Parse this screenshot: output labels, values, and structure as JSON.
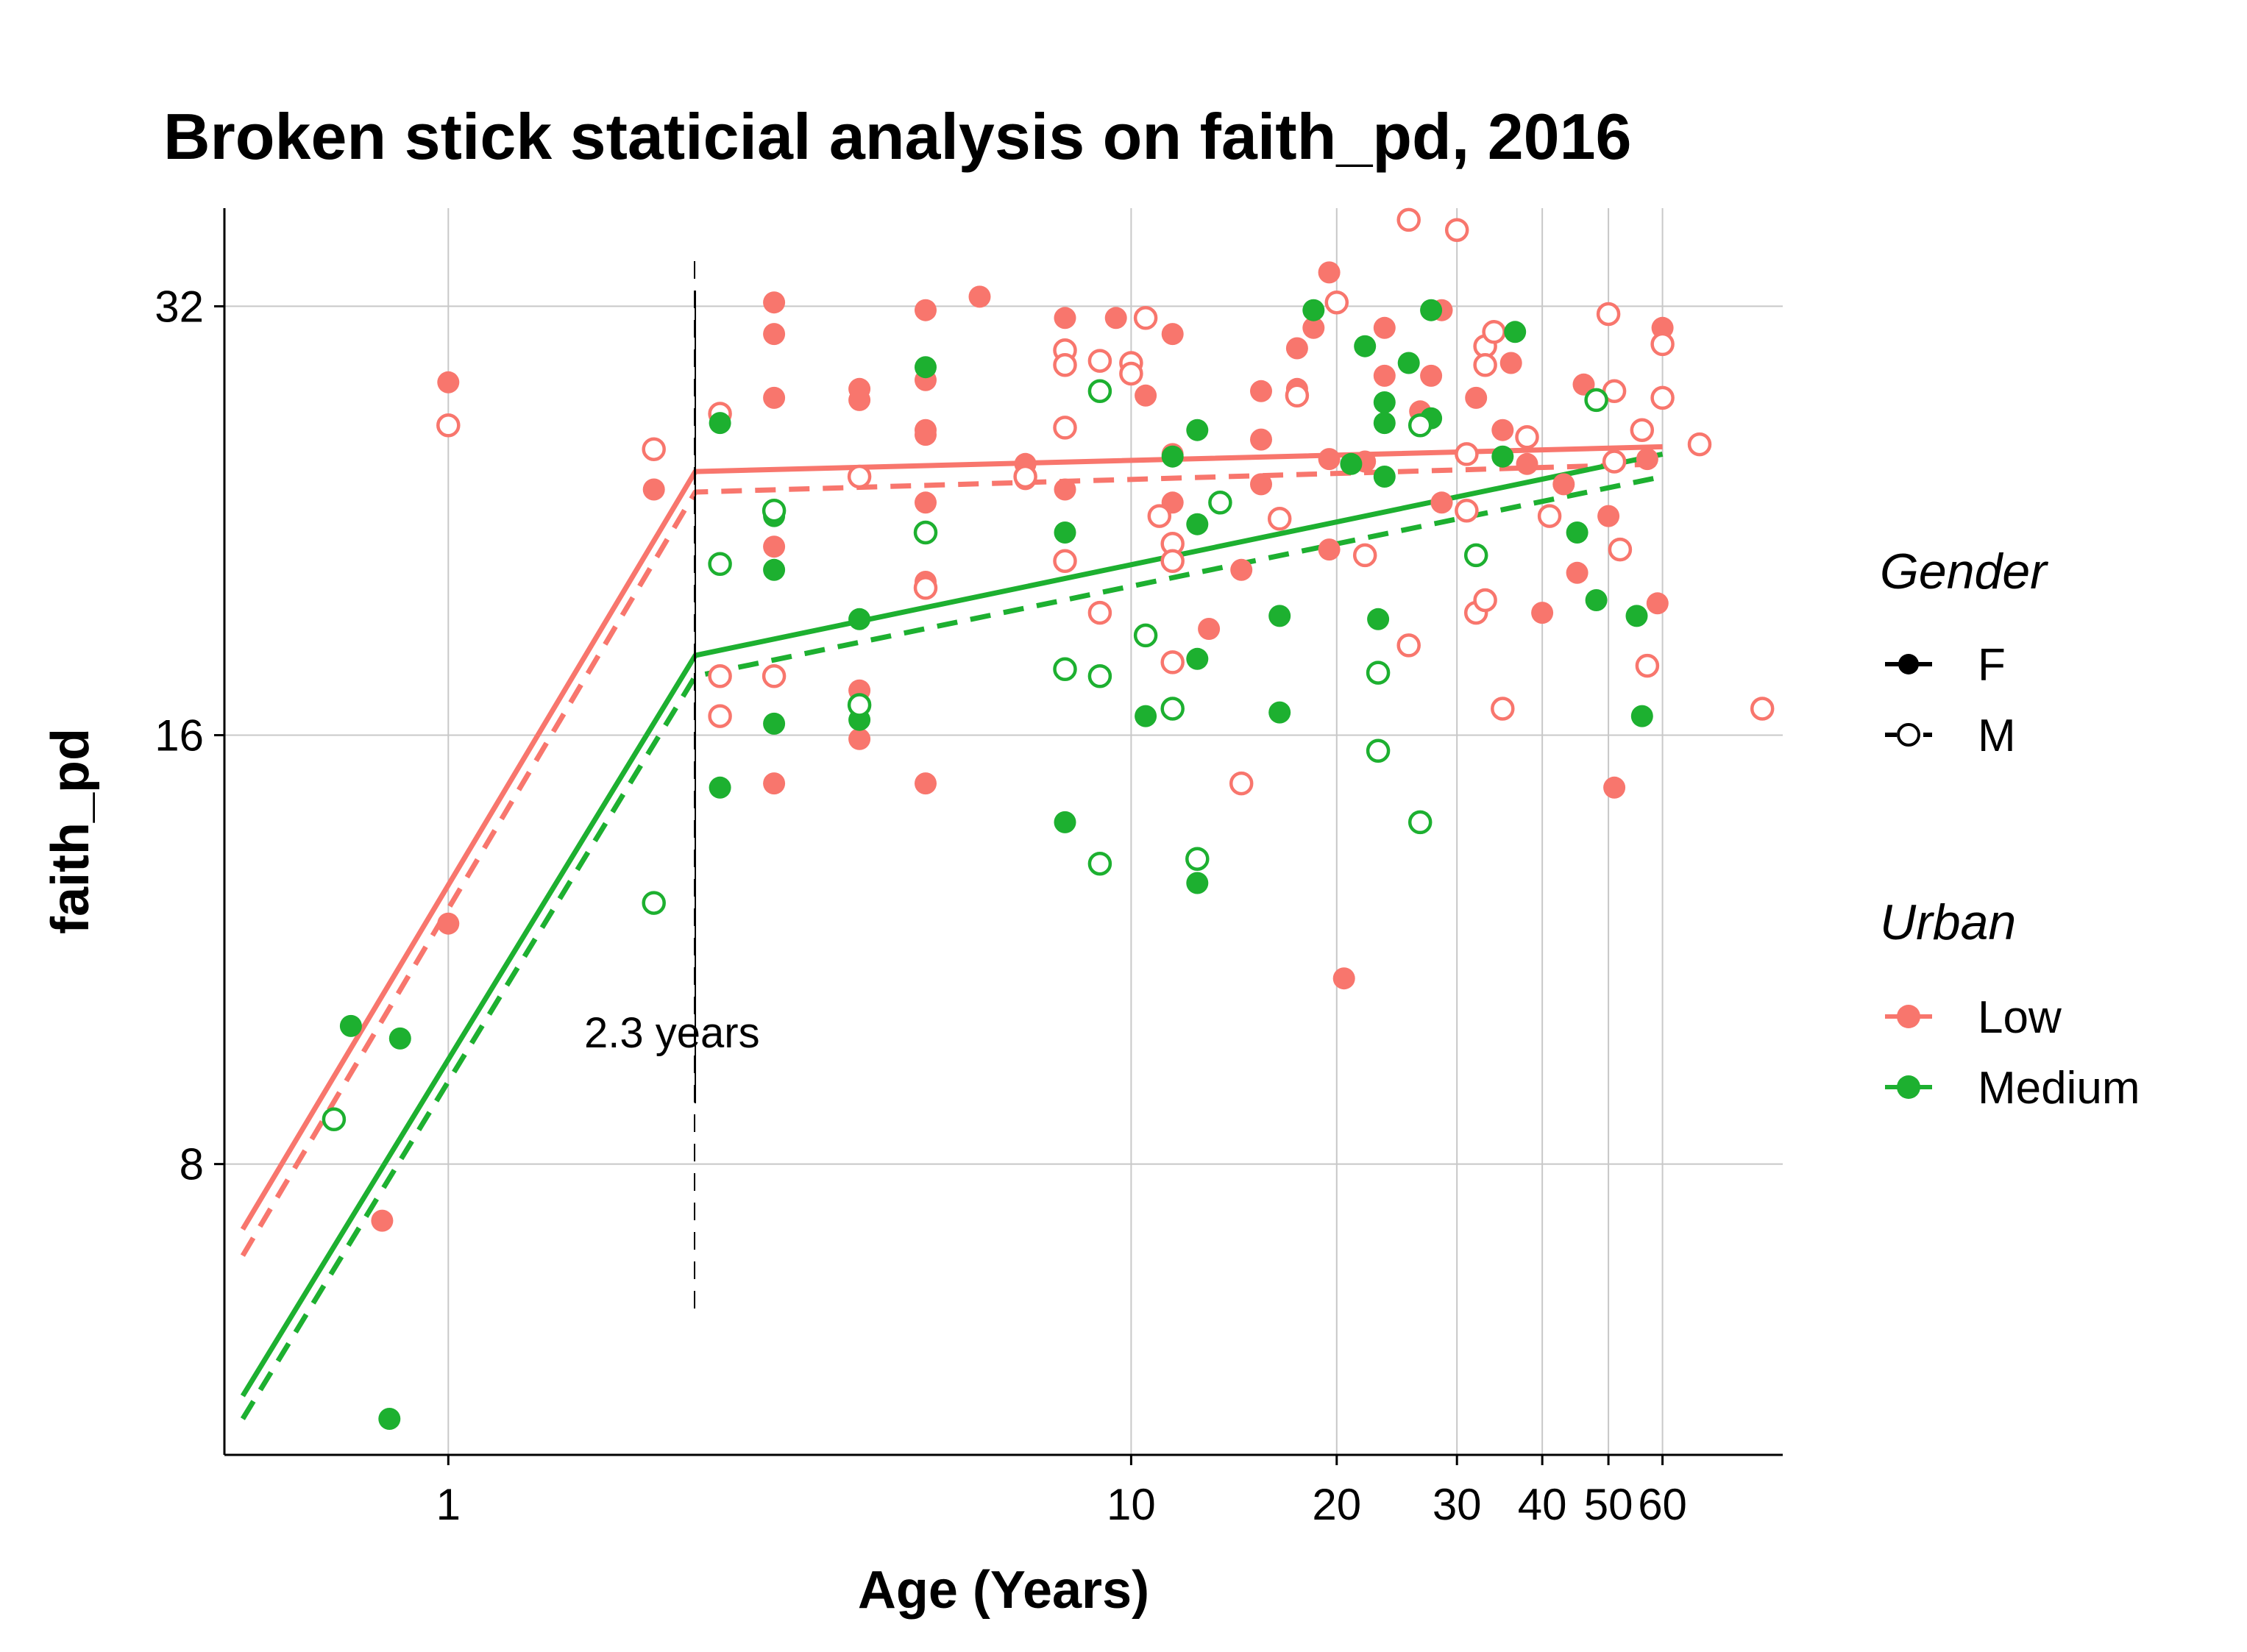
{
  "chart_data": {
    "type": "scatter",
    "title": "Broken stick staticial analysis on faith_pd, 2016",
    "xlabel": "Age (Years)",
    "ylabel": "faith_pd",
    "x_scale": "log",
    "xlim": [
      0.47,
      90
    ],
    "ylim": [
      5.0,
      37.5
    ],
    "y_scale": "log",
    "x_ticks": [
      1,
      10,
      20,
      30,
      40,
      50,
      60
    ],
    "y_ticks": [
      8,
      16,
      32
    ],
    "grid": true,
    "breakpoint": 2.3,
    "annotation": "2.3 years",
    "legend_position": "right",
    "legend": {
      "gender_title": "Gender",
      "gender_items": [
        {
          "label": "F",
          "marker": "filled",
          "line": "solid"
        },
        {
          "label": "M",
          "marker": "open",
          "line": "dashed"
        }
      ],
      "urban_title": "Urban",
      "urban_items": [
        {
          "label": "Low",
          "color": "#F8766D"
        },
        {
          "label": "Medium",
          "color": "#1DB030"
        }
      ]
    },
    "colors": {
      "Low": "#F8766D",
      "Medium": "#1DB030"
    },
    "fits": [
      {
        "urban": "Low",
        "gender": "F",
        "line": "solid",
        "points": [
          [
            0.5,
            7.2
          ],
          [
            2.3,
            24.5
          ],
          [
            60,
            25.5
          ]
        ]
      },
      {
        "urban": "Low",
        "gender": "M",
        "line": "dashed",
        "points": [
          [
            0.5,
            6.9
          ],
          [
            2.3,
            23.7
          ],
          [
            60,
            24.8
          ]
        ]
      },
      {
        "urban": "Medium",
        "gender": "F",
        "line": "solid",
        "points": [
          [
            0.5,
            5.5
          ],
          [
            2.3,
            18.2
          ],
          [
            60,
            25.2
          ]
        ]
      },
      {
        "urban": "Medium",
        "gender": "M",
        "line": "dashed",
        "points": [
          [
            0.5,
            5.3
          ],
          [
            2.3,
            17.6
          ],
          [
            60,
            24.3
          ]
        ]
      }
    ],
    "series": [
      {
        "urban": "Low",
        "gender": "F",
        "points": [
          [
            1.0,
            28.3
          ],
          [
            1.0,
            11.8
          ],
          [
            0.8,
            7.3
          ],
          [
            2.0,
            23.8
          ],
          [
            3.0,
            32.2
          ],
          [
            3.0,
            30.6
          ],
          [
            3.0,
            27.6
          ],
          [
            3.0,
            23.0
          ],
          [
            3.0,
            21.7
          ],
          [
            3.0,
            14.8
          ],
          [
            4.0,
            28.0
          ],
          [
            4.0,
            27.5
          ],
          [
            4.0,
            17.2
          ],
          [
            4.0,
            15.9
          ],
          [
            5.0,
            31.8
          ],
          [
            5.0,
            28.4
          ],
          [
            5.0,
            26.2
          ],
          [
            5.0,
            26.0
          ],
          [
            5.0,
            23.3
          ],
          [
            5.0,
            20.5
          ],
          [
            5.0,
            14.8
          ],
          [
            6.0,
            32.5
          ],
          [
            7.0,
            24.8
          ],
          [
            7.0,
            24.2
          ],
          [
            8.0,
            31.4
          ],
          [
            8.0,
            23.8
          ],
          [
            9.5,
            31.4
          ],
          [
            10.5,
            27.7
          ],
          [
            10.5,
            18.8
          ],
          [
            11.5,
            30.6
          ],
          [
            11.5,
            25.2
          ],
          [
            11.5,
            23.3
          ],
          [
            13.0,
            19.0
          ],
          [
            14.5,
            20.9
          ],
          [
            15.5,
            27.9
          ],
          [
            15.5,
            25.8
          ],
          [
            15.5,
            24.0
          ],
          [
            17.5,
            29.9
          ],
          [
            17.5,
            28.0
          ],
          [
            18.5,
            30.9
          ],
          [
            19.5,
            33.8
          ],
          [
            19.5,
            25.0
          ],
          [
            19.5,
            21.6
          ],
          [
            20.5,
            10.8
          ],
          [
            22.0,
            24.9
          ],
          [
            23.5,
            30.9
          ],
          [
            23.5,
            28.6
          ],
          [
            26.5,
            27.0
          ],
          [
            27.5,
            28.6
          ],
          [
            28.5,
            31.8
          ],
          [
            28.5,
            23.3
          ],
          [
            32.0,
            27.6
          ],
          [
            35.0,
            26.2
          ],
          [
            36.0,
            29.2
          ],
          [
            38.0,
            24.8
          ],
          [
            40.0,
            19.5
          ],
          [
            43.0,
            24.0
          ],
          [
            45.0,
            20.8
          ],
          [
            46.0,
            28.2
          ],
          [
            50.0,
            22.8
          ],
          [
            51.0,
            14.7
          ],
          [
            57.0,
            25.0
          ],
          [
            59.0,
            19.8
          ],
          [
            60.0,
            30.9
          ]
        ]
      },
      {
        "urban": "Low",
        "gender": "M",
        "points": [
          [
            1.0,
            26.4
          ],
          [
            2.0,
            25.4
          ],
          [
            2.5,
            26.9
          ],
          [
            2.5,
            17.6
          ],
          [
            2.5,
            16.5
          ],
          [
            3.0,
            17.6
          ],
          [
            4.0,
            24.3
          ],
          [
            5.0,
            20.3
          ],
          [
            7.0,
            24.3
          ],
          [
            8.0,
            29.8
          ],
          [
            8.0,
            29.1
          ],
          [
            8.0,
            26.3
          ],
          [
            8.0,
            21.2
          ],
          [
            9.0,
            29.3
          ],
          [
            9.0,
            19.5
          ],
          [
            10.0,
            29.2
          ],
          [
            10.0,
            28.7
          ],
          [
            10.5,
            31.4
          ],
          [
            11.0,
            22.8
          ],
          [
            11.5,
            21.8
          ],
          [
            11.5,
            21.2
          ],
          [
            11.5,
            18.0
          ],
          [
            14.5,
            14.8
          ],
          [
            16.5,
            22.7
          ],
          [
            17.5,
            27.7
          ],
          [
            20.0,
            32.2
          ],
          [
            22.0,
            21.4
          ],
          [
            25.5,
            18.5
          ],
          [
            25.5,
            36.8
          ],
          [
            30.0,
            36.2
          ],
          [
            31.0,
            25.2
          ],
          [
            31.0,
            23.0
          ],
          [
            32.0,
            19.5
          ],
          [
            33.0,
            30.0
          ],
          [
            33.0,
            29.1
          ],
          [
            33.0,
            19.9
          ],
          [
            34.0,
            30.7
          ],
          [
            35.0,
            16.7
          ],
          [
            38.0,
            25.9
          ],
          [
            41.0,
            22.8
          ],
          [
            50.0,
            31.6
          ],
          [
            51.0,
            27.9
          ],
          [
            51.0,
            24.9
          ],
          [
            52.0,
            21.6
          ],
          [
            56.0,
            26.2
          ],
          [
            57.0,
            17.9
          ],
          [
            60.0,
            30.1
          ],
          [
            60.0,
            27.6
          ],
          [
            68.0,
            25.6
          ],
          [
            84.0,
            16.7
          ]
        ]
      },
      {
        "urban": "Medium",
        "gender": "F",
        "points": [
          [
            0.72,
            10.0
          ],
          [
            0.85,
            9.8
          ],
          [
            0.82,
            5.3
          ],
          [
            2.5,
            26.5
          ],
          [
            2.5,
            14.7
          ],
          [
            3.0,
            22.8
          ],
          [
            3.0,
            20.9
          ],
          [
            3.0,
            16.3
          ],
          [
            4.0,
            19.3
          ],
          [
            4.0,
            16.4
          ],
          [
            5.0,
            29.0
          ],
          [
            5.0,
            22.2
          ],
          [
            8.0,
            22.2
          ],
          [
            8.0,
            13.9
          ],
          [
            10.5,
            16.5
          ],
          [
            11.5,
            25.1
          ],
          [
            12.5,
            26.2
          ],
          [
            12.5,
            22.5
          ],
          [
            12.5,
            18.1
          ],
          [
            12.5,
            12.6
          ],
          [
            16.5,
            19.4
          ],
          [
            16.5,
            16.6
          ],
          [
            18.5,
            31.8
          ],
          [
            21.0,
            24.8
          ],
          [
            22.0,
            30.0
          ],
          [
            23.0,
            19.3
          ],
          [
            23.5,
            27.4
          ],
          [
            23.5,
            26.5
          ],
          [
            23.5,
            24.3
          ],
          [
            25.5,
            29.2
          ],
          [
            27.5,
            31.8
          ],
          [
            27.5,
            26.7
          ],
          [
            35.0,
            25.1
          ],
          [
            36.5,
            30.7
          ],
          [
            45.0,
            22.2
          ],
          [
            48.0,
            19.9
          ],
          [
            55.0,
            19.4
          ],
          [
            56.0,
            16.5
          ]
        ]
      },
      {
        "urban": "Medium",
        "gender": "M",
        "points": [
          [
            0.68,
            8.6
          ],
          [
            2.0,
            12.2
          ],
          [
            2.5,
            21.1
          ],
          [
            3.0,
            23.0
          ],
          [
            4.0,
            16.8
          ],
          [
            5.0,
            22.2
          ],
          [
            8.0,
            17.8
          ],
          [
            9.0,
            27.9
          ],
          [
            9.0,
            17.6
          ],
          [
            9.0,
            13.0
          ],
          [
            10.5,
            18.8
          ],
          [
            11.5,
            16.7
          ],
          [
            12.5,
            13.1
          ],
          [
            13.5,
            23.3
          ],
          [
            23.0,
            17.7
          ],
          [
            23.0,
            15.6
          ],
          [
            26.5,
            26.4
          ],
          [
            26.5,
            13.9
          ],
          [
            32.0,
            21.4
          ],
          [
            48.0,
            27.5
          ]
        ]
      }
    ]
  }
}
